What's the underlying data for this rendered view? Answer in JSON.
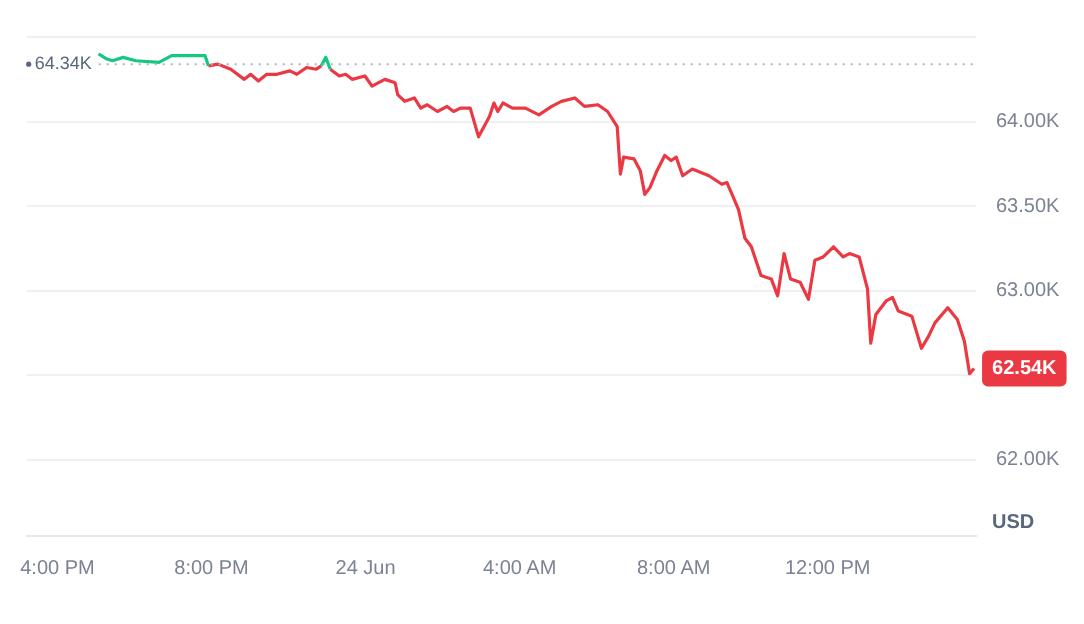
{
  "chart_data": {
    "type": "line",
    "ylabel": "USD",
    "x": [
      "--06-23T17:04",
      "--06-23T17:17",
      "--06-23T17:26",
      "--06-23T17:42",
      "--06-23T18:02",
      "--06-23T18:38",
      "--06-23T18:58",
      "--06-23T19:50",
      "--06-23T19:55",
      "--06-23T20:10",
      "--06-23T20:30",
      "--06-23T20:51",
      "--06-23T21:01",
      "--06-23T21:13",
      "--06-23T21:26",
      "--06-23T21:42",
      "--06-23T22:02",
      "--06-23T22:13",
      "--06-23T22:28",
      "--06-23T22:43",
      "--06-23T22:51",
      "--06-23T22:58",
      "--06-23T23:05",
      "--06-23T23:19",
      "--06-23T23:29",
      "--06-23T23:39",
      "--06-23T23:59",
      "--06-24T00:10",
      "--06-24T00:30",
      "--06-24T00:46",
      "--06-24T00:50",
      "--06-24T01:01",
      "--06-24T01:16",
      "--06-24T01:26",
      "--06-24T01:36",
      "--06-24T01:52",
      "--06-24T02:07",
      "--06-24T02:17",
      "--06-24T02:28",
      "--06-24T02:43",
      "--06-24T02:56",
      "--06-24T03:13",
      "--06-24T03:20",
      "--06-24T03:26",
      "--06-24T03:34",
      "--06-24T03:49",
      "--06-24T04:09",
      "--06-24T04:30",
      "--06-24T04:50",
      "--06-24T05:05",
      "--06-24T05:26",
      "--06-24T05:41",
      "--06-24T06:02",
      "--06-24T06:17",
      "--06-24T06:32",
      "--06-24T06:37",
      "--06-24T06:42",
      "--06-24T06:58",
      "--06-24T07:08",
      "--06-24T07:15",
      "--06-24T07:23",
      "--06-24T07:34",
      "--06-24T07:46",
      "--06-24T07:56",
      "--06-24T08:04",
      "--06-24T08:14",
      "--06-24T08:29",
      "--06-24T08:55",
      "--06-24T09:15",
      "--06-24T09:23",
      "--06-24T09:31",
      "--06-24T09:41",
      "--06-24T09:51",
      "--06-24T10:01",
      "--06-24T10:16",
      "--06-24T10:32",
      "--06-24T10:42",
      "--06-24T10:52",
      "--06-24T11:02",
      "--06-24T11:17",
      "--06-24T11:30",
      "--06-24T11:40",
      "--06-24T11:53",
      "--06-24T12:09",
      "--06-24T12:24",
      "--06-24T12:34",
      "--06-24T12:49",
      "--06-24T13:02",
      "--06-24T13:07",
      "--06-24T13:15",
      "--06-24T13:31",
      "--06-24T13:41",
      "--06-24T13:50",
      "--06-24T14:11",
      "--06-24T14:26",
      "--06-24T14:37",
      "--06-24T14:47",
      "--06-24T15:07",
      "--06-24T15:22",
      "--06-24T15:33",
      "--06-24T15:41",
      "--06-24T15:48"
    ],
    "series": [
      {
        "color": "#16c784",
        "values": [
          64.4,
          64.37,
          64.36,
          64.38,
          64.36,
          64.35,
          64.39,
          64.39,
          64.33,
          null,
          null,
          null,
          null,
          null,
          null,
          null,
          null,
          null,
          null,
          null,
          64.33,
          64.38,
          64.31,
          null,
          null,
          null,
          null,
          null,
          null,
          null,
          null,
          null,
          null,
          null,
          null,
          null,
          null,
          null,
          null,
          null,
          null,
          null,
          null,
          null,
          null,
          null,
          null,
          null,
          null,
          null,
          null,
          null,
          null,
          null,
          null,
          null,
          null,
          null,
          null,
          null,
          null,
          null,
          null,
          null,
          null,
          null,
          null,
          null,
          null,
          null,
          null,
          null,
          null,
          null,
          null,
          null,
          null,
          null,
          null,
          null,
          null,
          null,
          null,
          null,
          null,
          null,
          null,
          null,
          null,
          null,
          null,
          null,
          null,
          null,
          null,
          null,
          null,
          null,
          null,
          null,
          null,
          null
        ]
      },
      {
        "color": "#ea3943",
        "values": [
          null,
          null,
          null,
          null,
          null,
          null,
          null,
          null,
          64.33,
          64.34,
          64.31,
          64.25,
          64.28,
          64.24,
          64.28,
          64.28,
          64.3,
          64.28,
          64.32,
          64.31,
          64.33,
          null,
          64.31,
          64.27,
          64.28,
          64.25,
          64.27,
          64.21,
          64.25,
          64.23,
          64.16,
          64.12,
          64.14,
          64.08,
          64.1,
          64.06,
          64.09,
          64.06,
          64.08,
          64.08,
          63.91,
          64.03,
          64.11,
          64.06,
          64.11,
          64.08,
          64.08,
          64.04,
          64.09,
          64.12,
          64.14,
          64.09,
          64.1,
          64.06,
          63.97,
          63.69,
          63.79,
          63.78,
          63.71,
          63.57,
          63.61,
          63.71,
          63.8,
          63.77,
          63.79,
          63.68,
          63.72,
          63.68,
          63.63,
          63.64,
          63.57,
          63.48,
          63.31,
          63.26,
          63.09,
          63.07,
          62.97,
          63.22,
          63.07,
          63.05,
          62.95,
          63.18,
          63.2,
          63.26,
          63.2,
          63.22,
          63.2,
          63.01,
          62.69,
          62.86,
          62.94,
          62.96,
          62.88,
          62.85,
          62.66,
          62.73,
          62.81,
          62.9,
          62.83,
          62.7,
          62.51,
          62.54
        ]
      }
    ],
    "xlim": [
      "--06-23T15:12",
      "--06-24T15:51"
    ],
    "xticks": [
      {
        "value": "--06-23T16:00",
        "label": "4:00 PM"
      },
      {
        "value": "--06-23T20:00",
        "label": "8:00 PM"
      },
      {
        "value": "--06-24T00:00",
        "label": "24 Jun"
      },
      {
        "value": "--06-24T04:00",
        "label": "4:00 AM"
      },
      {
        "value": "--06-24T08:00",
        "label": "8:00 AM"
      },
      {
        "value": "--06-24T12:00",
        "label": "12:00 PM"
      }
    ],
    "ylim": [
      61.55,
      64.53
    ],
    "yticks": [
      {
        "value": 62,
        "label": "62.00K"
      },
      {
        "value": 62.5,
        "label": null
      },
      {
        "value": 63,
        "label": "63.00K"
      },
      {
        "value": 63.5,
        "label": "63.50K"
      },
      {
        "value": 64,
        "label": "64.00K"
      },
      {
        "value": 64.5,
        "label": null
      }
    ],
    "grid": "y",
    "legend": false,
    "marker": "none",
    "line_style": "solid",
    "ref_lines": [
      {
        "axis": "y",
        "value": 64.34,
        "label": "64.34K",
        "color": "#b0b4bc",
        "line_style": "dotted"
      }
    ],
    "annotations": [
      {
        "text": "62.54K",
        "x": "--06-24T15:48",
        "y": 62.54
      }
    ]
  }
}
